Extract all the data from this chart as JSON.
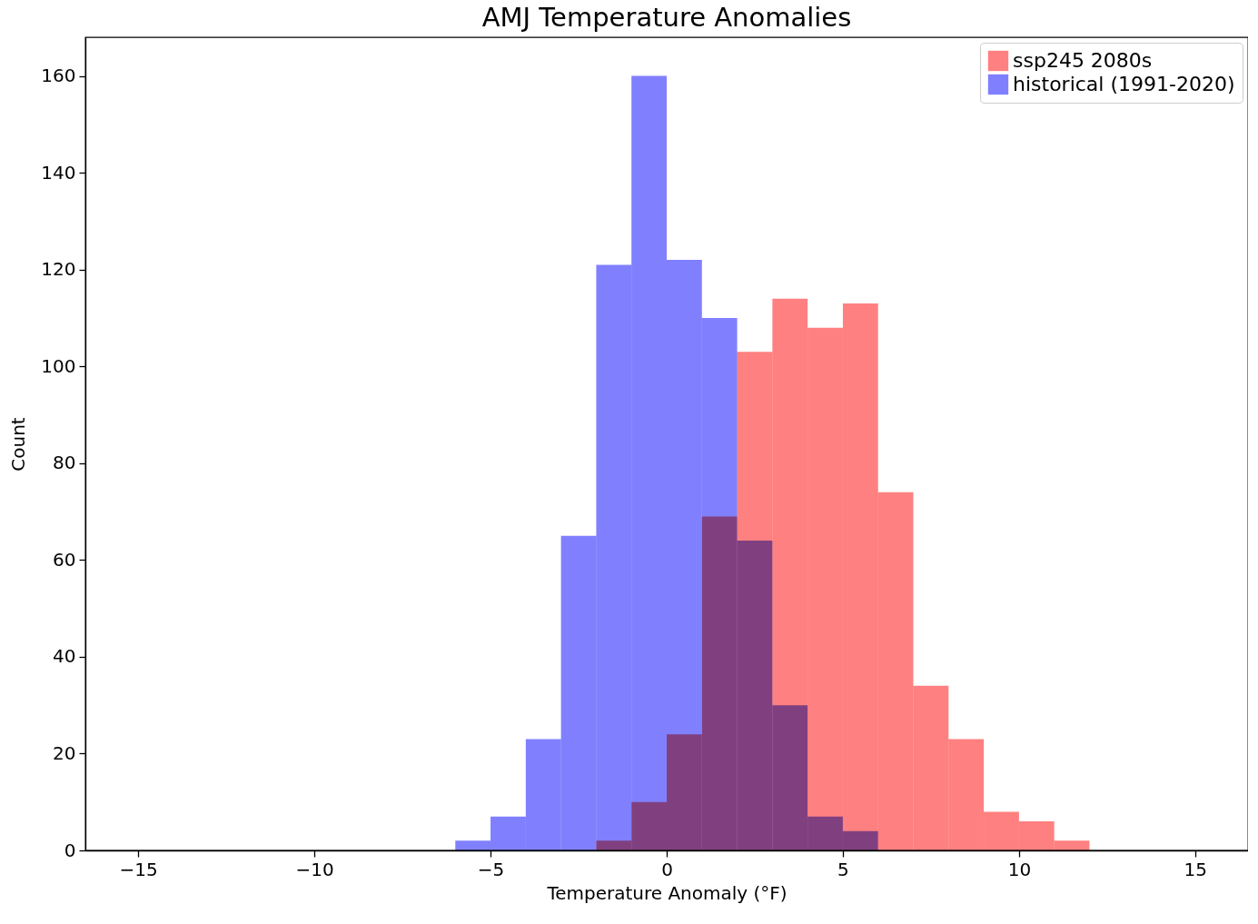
{
  "chart_data": {
    "type": "histogram",
    "title": "AMJ Temperature Anomalies",
    "xlabel": "Temperature Anomaly (°F)",
    "ylabel": "Count",
    "bins": [
      -6,
      -5,
      -4,
      -3,
      -2,
      -1,
      0,
      1,
      2,
      3,
      4,
      5,
      6,
      7,
      8,
      9,
      10,
      11,
      12
    ],
    "series": [
      {
        "name": "ssp245 2080s",
        "color": "#ff8080",
        "values": [
          0,
          0,
          0,
          0,
          2,
          10,
          24,
          69,
          103,
          114,
          108,
          113,
          74,
          34,
          23,
          8,
          6,
          2
        ]
      },
      {
        "name": "historical (1991-2020)",
        "color": "#8080ff",
        "values": [
          2,
          7,
          23,
          65,
          121,
          160,
          122,
          110,
          64,
          30,
          7,
          4,
          0,
          0,
          0,
          0,
          0,
          0
        ]
      }
    ],
    "xlim": [
      -16.5,
      16.5
    ],
    "ylim": [
      0,
      168
    ],
    "xticks": [
      {
        "value": -15,
        "label": "−15"
      },
      {
        "value": -10,
        "label": "−10"
      },
      {
        "value": -5,
        "label": "−5"
      },
      0,
      5,
      10,
      15
    ],
    "yticks": [
      0,
      20,
      40,
      60,
      80,
      100,
      120,
      140,
      160
    ],
    "grid": false,
    "legend": "top right"
  }
}
